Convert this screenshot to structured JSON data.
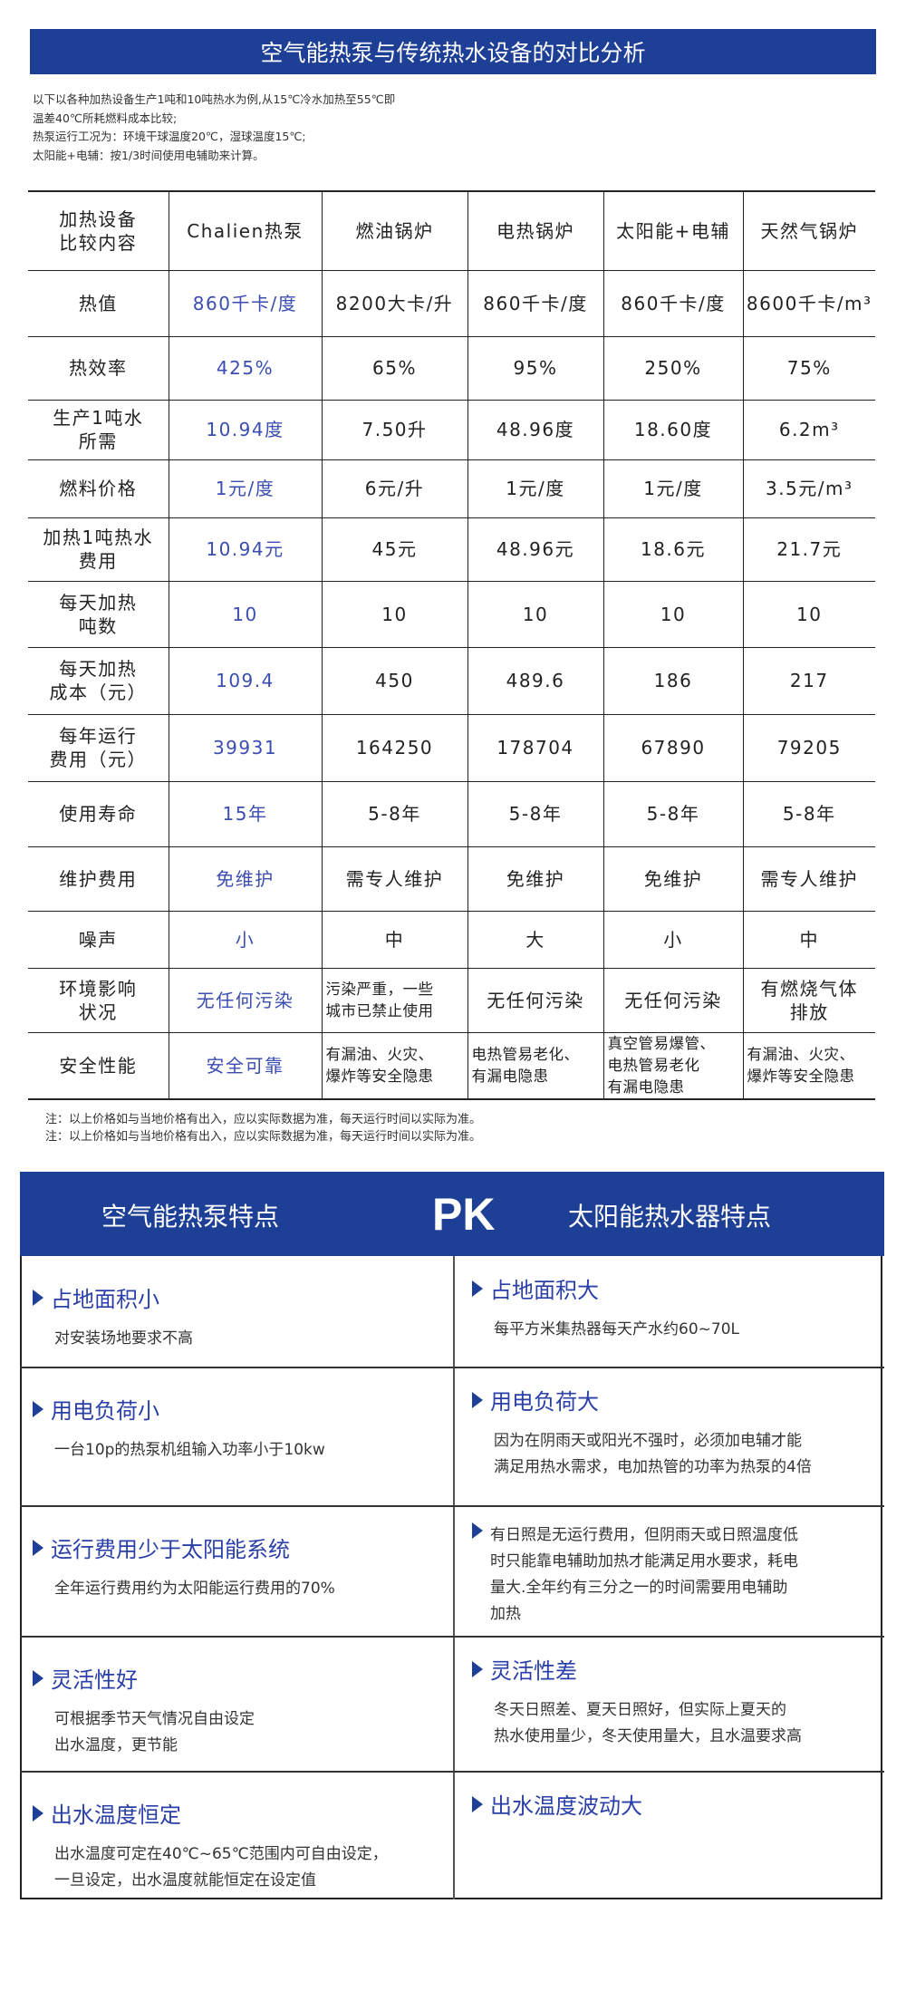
{
  "title": "空气能热泵与传统热水设备的对比分析",
  "intro": [
    "以下以各种加热设备生产1吨和10吨热水为例,从15℃冷水加热至55℃即",
    "温差40℃所耗燃料成本比较;",
    "热泵运行工况为：环境干球温度20℃，湿球温度15℃;",
    "太阳能+电辅：按1/3时间使用电辅助来计算。"
  ],
  "table": {
    "header": [
      "加热设备\n比较内容",
      "Chalien热泵",
      "燃油锅炉",
      "电热锅炉",
      "太阳能+电辅",
      "天然气锅炉"
    ],
    "rows": [
      [
        "热值",
        "860千卡/度",
        "8200大卡/升",
        "860千卡/度",
        "860千卡/度",
        "8600千卡/m³"
      ],
      [
        "热效率",
        "425%",
        "65%",
        "95%",
        "250%",
        "75%"
      ],
      [
        "生产1吨水\n所需",
        "10.94度",
        "7.50升",
        "48.96度",
        "18.60度",
        "6.2m³"
      ],
      [
        "燃料价格",
        "1元/度",
        "6元/升",
        "1元/度",
        "1元/度",
        "3.5元/m³"
      ],
      [
        "加热1吨热水\n费用",
        "10.94元",
        "45元",
        "48.96元",
        "18.6元",
        "21.7元"
      ],
      [
        "每天加热\n吨数",
        "10",
        "10",
        "10",
        "10",
        "10"
      ],
      [
        "每天加热\n成本（元）",
        "109.4",
        "450",
        "489.6",
        "186",
        "217"
      ],
      [
        "每年运行\n费用（元）",
        "39931",
        "164250",
        "178704",
        "67890",
        "79205"
      ],
      [
        "使用寿命",
        "15年",
        "5-8年",
        "5-8年",
        "5-8年",
        "5-8年"
      ],
      [
        "维护费用",
        "免维护",
        "需专人维护",
        "免维护",
        "免维护",
        "需专人维护"
      ],
      [
        "噪声",
        "小",
        "中",
        "大",
        "小",
        "中"
      ],
      [
        "环境影响\n状况",
        "无任何污染",
        "污染严重，一些\n城市已禁止使用",
        "无任何污染",
        "无任何污染",
        "有燃烧气体\n排放"
      ],
      [
        "安全性能",
        "安全可靠",
        "有漏油、火灾、\n爆炸等安全隐患",
        "电热管易老化、\n有漏电隐患",
        "真空管易爆管、\n电热管易老化\n有漏电隐患",
        "有漏油、火灾、\n爆炸等安全隐患"
      ]
    ]
  },
  "notes": [
    "注：以上价格如与当地价格有出入，应以实际数据为准，每天运行时间以实际为准。",
    "注：以上价格如与当地价格有出入，应以实际数据为准，每天运行时间以实际为准。"
  ],
  "pk": {
    "left_title": "空气能热泵特点",
    "vs": "PK",
    "right_title": "太阳能热水器特点",
    "rows": [
      {
        "left": {
          "h": "占地面积小",
          "b": [
            "对安装场地要求不高"
          ]
        },
        "right": {
          "h": "占地面积大",
          "b": [
            "每平方米集热器每天产水约60~70L"
          ]
        }
      },
      {
        "left": {
          "h": "用电负荷小",
          "b": [
            "一台10p的热泵机组输入功率小于10kw"
          ]
        },
        "right": {
          "h": "用电负荷大",
          "b": [
            "因为在阴雨天或阳光不强时，必须加电辅才能",
            "满足用热水需求，电加热管的功率为热泵的4倍"
          ]
        }
      },
      {
        "left": {
          "h": "运行费用少于太阳能系统",
          "b": [
            "全年运行费用约为太阳能运行费用的70%"
          ]
        },
        "right": {
          "h": "有日照是无运行费用，但阴雨天或日照温度低",
          "b": [
            "时只能靠电辅助加热才能满足用水要求，耗电",
            "量大.全年约有三分之一的时间需要用电辅助",
            "加热"
          ]
        }
      },
      {
        "left": {
          "h": "灵活性好",
          "b": [
            "可根据季节天气情况自由设定",
            "出水温度，更节能"
          ]
        },
        "right": {
          "h": "灵活性差",
          "b": [
            "冬天日照差、夏天日照好，但实际上夏天的",
            "热水使用量少，冬天使用量大，且水温要求高"
          ]
        }
      },
      {
        "left": {
          "h": "出水温度恒定",
          "b": [
            "出水温度可定在40℃~65℃范围内可自由设定，",
            "一旦设定，出水温度就能恒定在设定值"
          ]
        },
        "right": {
          "h": "出水温度波动大",
          "b": []
        }
      }
    ]
  },
  "colors": {
    "brand_blue": "#1e3f96",
    "highlight_text": "#3b4db0",
    "heading_text": "#2a3fa8"
  }
}
